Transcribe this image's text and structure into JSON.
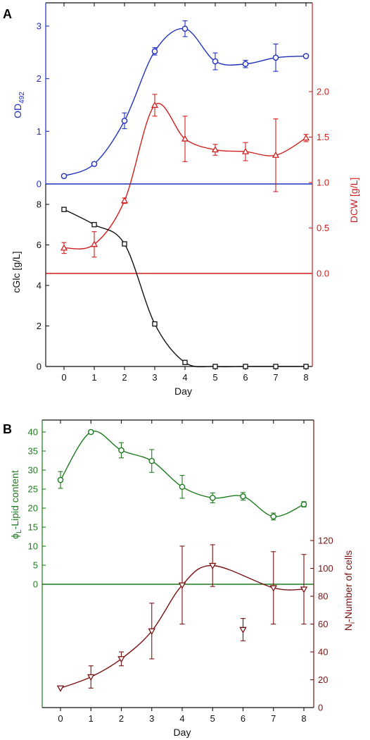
{
  "panels": {
    "A": {
      "label": "A"
    },
    "B": {
      "label": "B"
    }
  },
  "colors": {
    "blue": "#1f2fbf",
    "red": "#d11f1f",
    "black": "#111111",
    "green": "#1e7a1e",
    "darkred": "#7a1212"
  },
  "chart_data": [
    {
      "id": "A-top",
      "type": "line",
      "x_shared": "A-bottom",
      "ylabel": "OD",
      "ylabel_sub": "492",
      "ylim": [
        0,
        3.3
      ],
      "yticks": [
        0,
        1,
        2,
        3
      ],
      "series": [
        {
          "marker": "circle",
          "color": "#1f2fbf",
          "x": [
            0,
            1,
            2,
            3,
            4,
            5,
            6,
            7,
            8
          ],
          "values": [
            0.15,
            0.38,
            1.2,
            2.52,
            2.95,
            2.33,
            2.28,
            2.4,
            2.43
          ],
          "err": [
            0.03,
            0.03,
            0.15,
            0.07,
            0.15,
            0.16,
            0.07,
            0.26,
            0.03
          ]
        }
      ]
    },
    {
      "id": "A-bottom",
      "type": "line",
      "xlabel": "Day",
      "xticks": [
        0,
        1,
        2,
        3,
        4,
        5,
        6,
        7,
        8
      ],
      "xlim": [
        -0.6,
        8.5
      ],
      "ylabel": "cGlc [g/L]",
      "ylim": [
        0,
        9
      ],
      "yticks": [
        0,
        2,
        4,
        6,
        8
      ],
      "series": [
        {
          "marker": "square",
          "color": "#111111",
          "x": [
            0,
            1,
            2,
            3,
            4,
            5,
            6,
            7,
            8
          ],
          "values": [
            7.75,
            7.0,
            6.05,
            2.1,
            0.2,
            0.0,
            0.0,
            0.0,
            0.0
          ]
        }
      ]
    },
    {
      "id": "A-right",
      "type": "line",
      "ylabel": "DCW [g/L]",
      "ylim": [
        -0.22,
        2.4
      ],
      "yticks": [
        0.0,
        0.5,
        1.0,
        1.5,
        2.0
      ],
      "series": [
        {
          "marker": "triangle-up",
          "color": "#d11f1f",
          "x": [
            0,
            1,
            2,
            3,
            4,
            5,
            6,
            7,
            8
          ],
          "values": [
            0.28,
            0.32,
            0.8,
            1.85,
            1.48,
            1.36,
            1.34,
            1.3,
            1.49
          ],
          "err": [
            0.06,
            0.14,
            0.03,
            0.12,
            0.25,
            0.06,
            0.1,
            0.4,
            0.04
          ]
        }
      ]
    },
    {
      "id": "B-left",
      "type": "line",
      "xlabel": "Day",
      "xticks": [
        0,
        1,
        2,
        3,
        4,
        5,
        6,
        7,
        8
      ],
      "xlim": [
        -0.6,
        8.5
      ],
      "ylabel": "ϕ",
      "ylabel_sub": "L",
      "ylabel_rest": "-Lipid content",
      "ylim": [
        -18,
        42
      ],
      "yticks": [
        0,
        5,
        10,
        15,
        20,
        25,
        30,
        35,
        40
      ],
      "series": [
        {
          "marker": "circle",
          "color": "#1e7a1e",
          "x": [
            0,
            1,
            2,
            3,
            4,
            5,
            6,
            7,
            8
          ],
          "values": [
            27.4,
            40.0,
            35.2,
            32.4,
            25.6,
            22.7,
            23.1,
            17.8,
            21.0
          ],
          "err": [
            2.2,
            0.4,
            2.0,
            3.0,
            3.0,
            1.3,
            1.0,
            0.9,
            0.7
          ]
        }
      ]
    },
    {
      "id": "B-right",
      "type": "line",
      "ylabel": "N",
      "ylabel_sub": "i",
      "ylabel_rest": "-Number of cells",
      "ylim": [
        0,
        140
      ],
      "yticks": [
        0,
        20,
        40,
        60,
        80,
        100,
        120
      ],
      "series": [
        {
          "marker": "triangle-down",
          "color": "#7a1212",
          "x": [
            0,
            1,
            2,
            3,
            4,
            5,
            6,
            7,
            8
          ],
          "values": [
            14,
            22,
            35,
            55,
            88,
            102,
            56,
            86,
            85
          ],
          "err": [
            0,
            8,
            5,
            20,
            28,
            15,
            8,
            26,
            25
          ]
        }
      ]
    }
  ]
}
